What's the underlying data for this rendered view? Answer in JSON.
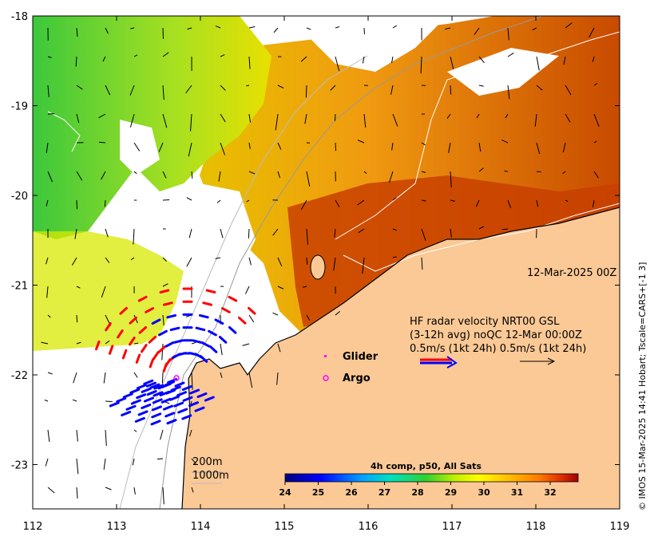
{
  "map": {
    "x_ticks": [
      "112",
      "113",
      "114",
      "115",
      "116",
      "117",
      "118",
      "119"
    ],
    "y_ticks": [
      "-18",
      "-19",
      "-20",
      "-21",
      "-22",
      "-23"
    ]
  },
  "labels": {
    "date": "12-Mar-2025 00Z",
    "radar_line1": "HF radar velocity  NRT00 GSL",
    "radar_line2": "(3-12h avg) noQC 12-Mar 00:00Z",
    "radar_line3": "0.5m/s (1kt 24h)   0.5m/s (1kt 24h)",
    "glider": "Glider",
    "argo": "Argo",
    "contour_200": "200m",
    "contour_1000": "1000m",
    "copyright": "© IMOS 15-Mar-2025 14:41 Hobart; Tscale=CARS+[-1 3]"
  },
  "colorbar": {
    "title": "4h comp, p50, All Sats",
    "ticks": [
      "24",
      "25",
      "26",
      "27",
      "28",
      "29",
      "30",
      "31",
      "32"
    ]
  },
  "colors": {
    "land": "#fbc996",
    "radar_red": "#ff0000",
    "radar_blue": "#0000ff",
    "glider": "#ff00ff",
    "argo": "#ff00ff"
  }
}
